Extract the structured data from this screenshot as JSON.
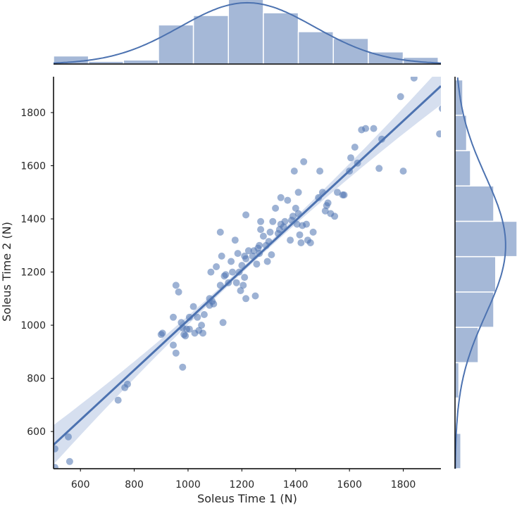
{
  "chart_data": {
    "type": "scatter",
    "title": "",
    "xlabel": "Soleus Time 1 (N)",
    "ylabel": "Soleus Time 2 (N)",
    "xlim": [
      500,
      1940
    ],
    "ylim": [
      460,
      1935
    ],
    "xticks": [
      600,
      800,
      1000,
      1200,
      1400,
      1600,
      1800
    ],
    "yticks": [
      600,
      800,
      1000,
      1200,
      1400,
      1600,
      1800
    ],
    "colors": {
      "points": "#4c72b0",
      "line": "#4c72b0",
      "band": "#c8d4ea",
      "axis": "#000000"
    },
    "regression": {
      "x": [
        500,
        1940
      ],
      "y": [
        550,
        1900
      ]
    },
    "points": [
      [
        505,
        535
      ],
      [
        505,
        465
      ],
      [
        555,
        580
      ],
      [
        560,
        487
      ],
      [
        740,
        718
      ],
      [
        765,
        765
      ],
      [
        775,
        778
      ],
      [
        900,
        965
      ],
      [
        905,
        970
      ],
      [
        945,
        1030
      ],
      [
        945,
        925
      ],
      [
        955,
        895
      ],
      [
        955,
        1150
      ],
      [
        965,
        1125
      ],
      [
        975,
        1010
      ],
      [
        980,
        990
      ],
      [
        980,
        842
      ],
      [
        985,
        965
      ],
      [
        990,
        960
      ],
      [
        995,
        985
      ],
      [
        1005,
        1030
      ],
      [
        1005,
        985
      ],
      [
        1020,
        1070
      ],
      [
        1025,
        970
      ],
      [
        1035,
        1030
      ],
      [
        1040,
        980
      ],
      [
        1050,
        1000
      ],
      [
        1055,
        970
      ],
      [
        1060,
        1040
      ],
      [
        1080,
        1100
      ],
      [
        1080,
        1075
      ],
      [
        1085,
        1200
      ],
      [
        1090,
        1090
      ],
      [
        1095,
        1080
      ],
      [
        1105,
        1220
      ],
      [
        1120,
        1150
      ],
      [
        1120,
        1350
      ],
      [
        1125,
        1260
      ],
      [
        1130,
        1010
      ],
      [
        1135,
        1185
      ],
      [
        1140,
        1190
      ],
      [
        1150,
        1160
      ],
      [
        1160,
        1240
      ],
      [
        1165,
        1200
      ],
      [
        1175,
        1320
      ],
      [
        1180,
        1160
      ],
      [
        1185,
        1270
      ],
      [
        1190,
        1200
      ],
      [
        1195,
        1130
      ],
      [
        1200,
        1225
      ],
      [
        1205,
        1150
      ],
      [
        1210,
        1180
      ],
      [
        1210,
        1260
      ],
      [
        1215,
        1250
      ],
      [
        1215,
        1415
      ],
      [
        1215,
        1100
      ],
      [
        1225,
        1280
      ],
      [
        1240,
        1260
      ],
      [
        1245,
        1280
      ],
      [
        1250,
        1110
      ],
      [
        1255,
        1230
      ],
      [
        1260,
        1290
      ],
      [
        1265,
        1270
      ],
      [
        1265,
        1300
      ],
      [
        1270,
        1360
      ],
      [
        1270,
        1390
      ],
      [
        1280,
        1335
      ],
      [
        1290,
        1300
      ],
      [
        1295,
        1240
      ],
      [
        1300,
        1315
      ],
      [
        1305,
        1350
      ],
      [
        1310,
        1265
      ],
      [
        1315,
        1390
      ],
      [
        1325,
        1440
      ],
      [
        1335,
        1345
      ],
      [
        1340,
        1360
      ],
      [
        1345,
        1380
      ],
      [
        1345,
        1480
      ],
      [
        1355,
        1370
      ],
      [
        1360,
        1390
      ],
      [
        1370,
        1470
      ],
      [
        1380,
        1320
      ],
      [
        1385,
        1395
      ],
      [
        1390,
        1410
      ],
      [
        1395,
        1580
      ],
      [
        1400,
        1440
      ],
      [
        1405,
        1380
      ],
      [
        1410,
        1420
      ],
      [
        1410,
        1500
      ],
      [
        1415,
        1340
      ],
      [
        1420,
        1310
      ],
      [
        1425,
        1375
      ],
      [
        1430,
        1615
      ],
      [
        1440,
        1380
      ],
      [
        1445,
        1320
      ],
      [
        1455,
        1310
      ],
      [
        1465,
        1350
      ],
      [
        1485,
        1480
      ],
      [
        1490,
        1580
      ],
      [
        1500,
        1500
      ],
      [
        1510,
        1430
      ],
      [
        1515,
        1450
      ],
      [
        1520,
        1460
      ],
      [
        1530,
        1420
      ],
      [
        1545,
        1410
      ],
      [
        1555,
        1500
      ],
      [
        1575,
        1490
      ],
      [
        1580,
        1490
      ],
      [
        1600,
        1580
      ],
      [
        1605,
        1630
      ],
      [
        1620,
        1670
      ],
      [
        1630,
        1610
      ],
      [
        1645,
        1735
      ],
      [
        1660,
        1740
      ],
      [
        1690,
        1740
      ],
      [
        1710,
        1590
      ],
      [
        1720,
        1700
      ],
      [
        1790,
        1860
      ],
      [
        1800,
        1580
      ],
      [
        1840,
        1930
      ],
      [
        1935,
        1720
      ],
      [
        1945,
        1815
      ]
    ],
    "top_histogram": {
      "bins_x": [
        500,
        630,
        760,
        890,
        1020,
        1150,
        1280,
        1410,
        1540,
        1670,
        1800,
        1930
      ],
      "counts": [
        3,
        1,
        1.5,
        14.5,
        18,
        24,
        19,
        12,
        9.5,
        4.5,
        2.5
      ]
    },
    "right_histogram": {
      "bins_y": [
        460,
        593,
        726,
        859,
        992,
        1125,
        1258,
        1391,
        1524,
        1657,
        1790,
        1923
      ],
      "counts": [
        1.5,
        0,
        1,
        6,
        10,
        10.5,
        16,
        10,
        4,
        3,
        2
      ]
    },
    "kde_x": {
      "mean": 1220,
      "sd": 250
    },
    "kde_y": {
      "mean": 1300,
      "sd": 260
    }
  }
}
